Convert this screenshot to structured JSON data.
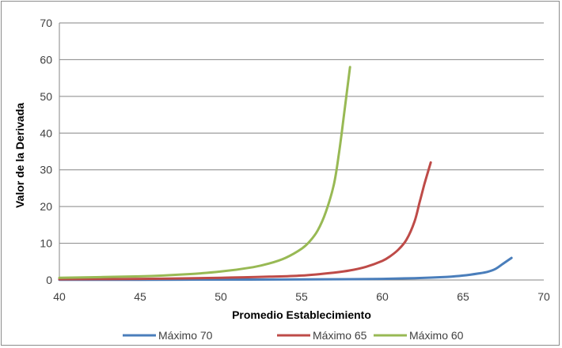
{
  "chart_data": {
    "type": "line",
    "title": "",
    "xlabel": "Promedio Establecimiento",
    "ylabel": "Valor de la Derivada",
    "xlim": [
      40,
      70
    ],
    "ylim": [
      0,
      70
    ],
    "x_ticks": [
      40,
      45,
      50,
      55,
      60,
      65,
      70
    ],
    "y_ticks": [
      0,
      10,
      20,
      30,
      40,
      50,
      60,
      70
    ],
    "grid": "horizontal major gridlines",
    "legend_position": "bottom",
    "series": [
      {
        "name": "Máximo 70",
        "color": "#4a7ebb",
        "x": [
          40,
          45,
          50,
          55,
          58,
          60,
          62,
          64,
          65,
          66,
          66.5,
          67,
          67.5,
          68
        ],
        "y": [
          0.05,
          0.07,
          0.1,
          0.15,
          0.22,
          0.3,
          0.5,
          0.85,
          1.2,
          1.8,
          2.2,
          3.0,
          4.5,
          6.0
        ]
      },
      {
        "name": "Máximo 65",
        "color": "#be4b48",
        "x": [
          40,
          45,
          50,
          53,
          55,
          57,
          58,
          59,
          60,
          60.5,
          61,
          61.5,
          62,
          62.3,
          62.6,
          63
        ],
        "y": [
          0.2,
          0.3,
          0.6,
          0.9,
          1.2,
          2.0,
          2.6,
          3.6,
          5.2,
          6.5,
          8.3,
          11,
          16,
          21,
          26,
          32
        ]
      },
      {
        "name": "Máximo 60",
        "color": "#98b954",
        "x": [
          40,
          45,
          48,
          50,
          52,
          53,
          54,
          55,
          55.5,
          56,
          56.5,
          57,
          57.3,
          57.6,
          58
        ],
        "y": [
          0.6,
          1.0,
          1.6,
          2.3,
          3.5,
          4.5,
          6.0,
          8.5,
          10.5,
          13.5,
          18.5,
          26,
          34,
          44,
          58
        ]
      }
    ]
  }
}
